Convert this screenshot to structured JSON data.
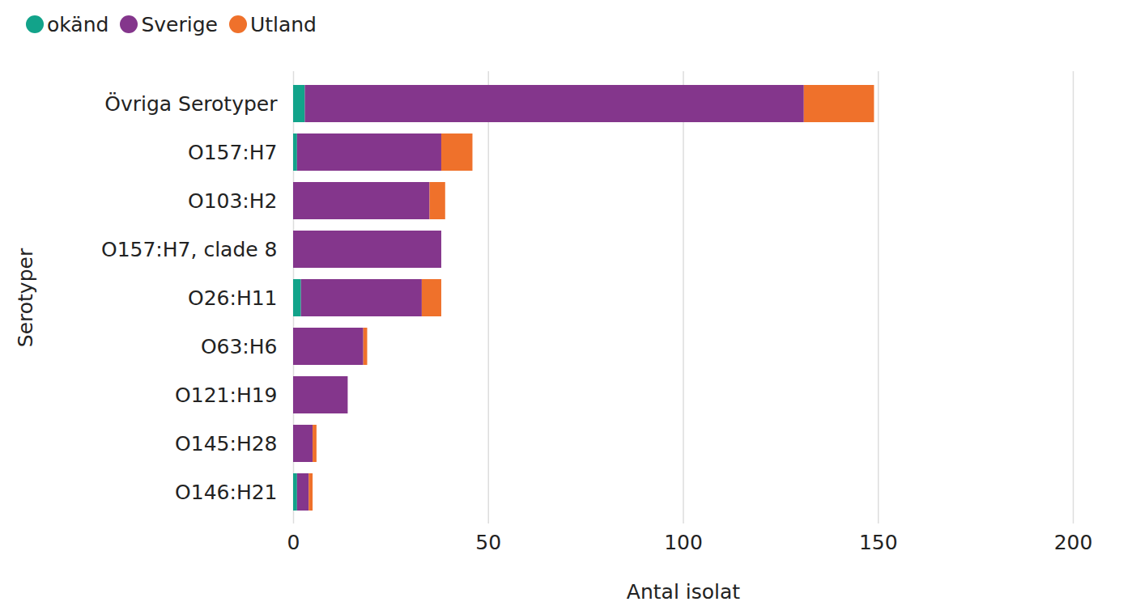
{
  "chart_data": {
    "type": "bar",
    "orientation": "horizontal",
    "stacked": true,
    "grid": true,
    "legend": "top-left",
    "x_label": "Antal isolat",
    "y_label": "Serotyper",
    "categories": [
      "Övriga Serotyper",
      "O157:H7",
      "O103:H2",
      "O157:H7, clade 8",
      "O26:H11",
      "O63:H6",
      "O121:H19",
      "O145:H28",
      "O146:H21"
    ],
    "series": [
      {
        "name": "okänd",
        "color": "#12a38a",
        "values": [
          3,
          1,
          0,
          0,
          2,
          0,
          0,
          0,
          1
        ]
      },
      {
        "name": "Sverige",
        "color": "#84368c",
        "values": [
          128,
          37,
          35,
          38,
          31,
          18,
          14,
          5,
          3
        ]
      },
      {
        "name": "Utland",
        "color": "#ef712b",
        "values": [
          18,
          8,
          4,
          0,
          5,
          1,
          0,
          1,
          1
        ]
      }
    ],
    "xlim": [
      0,
      200
    ],
    "xticks": [
      0,
      50,
      100,
      150,
      200
    ]
  }
}
